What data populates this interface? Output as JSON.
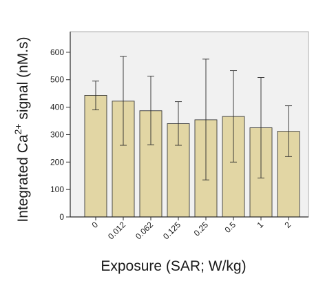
{
  "chart_data": {
    "type": "bar",
    "categories": [
      "0",
      "0.012",
      "0.062",
      "0.125",
      "0.25",
      "0.5",
      "1",
      "2"
    ],
    "values": [
      443,
      422,
      387,
      340,
      354,
      366,
      325,
      312
    ],
    "error_bars": {
      "upper": [
        495,
        585,
        513,
        420,
        575,
        533,
        508,
        405
      ],
      "lower": [
        390,
        261,
        263,
        261,
        135,
        200,
        142,
        220
      ]
    },
    "title": "",
    "xlabel": "Exposure (SAR; W/kg)",
    "ylabel": {
      "prefix": "Integrated Ca",
      "superscript": "2+",
      "suffix": " signal (nM.s)"
    },
    "ylim": [
      0,
      675
    ],
    "yticks": [
      0,
      100,
      200,
      300,
      400,
      500,
      600
    ],
    "grid": false,
    "colors": {
      "bar_fill": "#e2d6a4",
      "bar_stroke": "#3a3a3a",
      "plot_background": "#f1f1f1",
      "axis": "#2a2a2a",
      "error_bar": "#2a2a2a"
    }
  }
}
